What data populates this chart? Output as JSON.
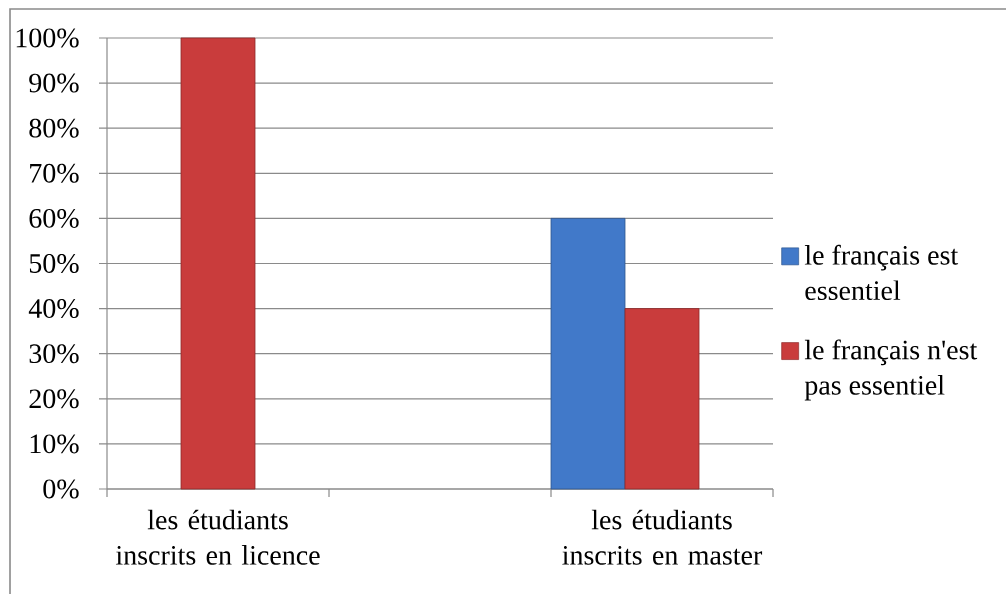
{
  "chart_data": {
    "type": "bar",
    "categories": [
      "les étudiants inscrits en licence",
      null,
      "les étudiants inscrits en master"
    ],
    "series": [
      {
        "name": "le français est essentiel",
        "color": "#4179c9",
        "values": [
          null,
          null,
          60
        ]
      },
      {
        "name": "le français n'est pas essentiel",
        "color": "#c93c3c",
        "values": [
          100,
          null,
          40
        ]
      }
    ],
    "ylim": [
      0,
      100
    ],
    "yticks": [
      {
        "value": 0,
        "label": "0%"
      },
      {
        "value": 10,
        "label": "10%"
      },
      {
        "value": 20,
        "label": "20%"
      },
      {
        "value": 30,
        "label": "30%"
      },
      {
        "value": 40,
        "label": "40%"
      },
      {
        "value": 50,
        "label": "50%"
      },
      {
        "value": 60,
        "label": "60%"
      },
      {
        "value": 70,
        "label": "70%"
      },
      {
        "value": 80,
        "label": "80%"
      },
      {
        "value": 90,
        "label": "90%"
      },
      {
        "value": 100,
        "label": "100%"
      }
    ],
    "grid": "y",
    "legend": "right"
  }
}
